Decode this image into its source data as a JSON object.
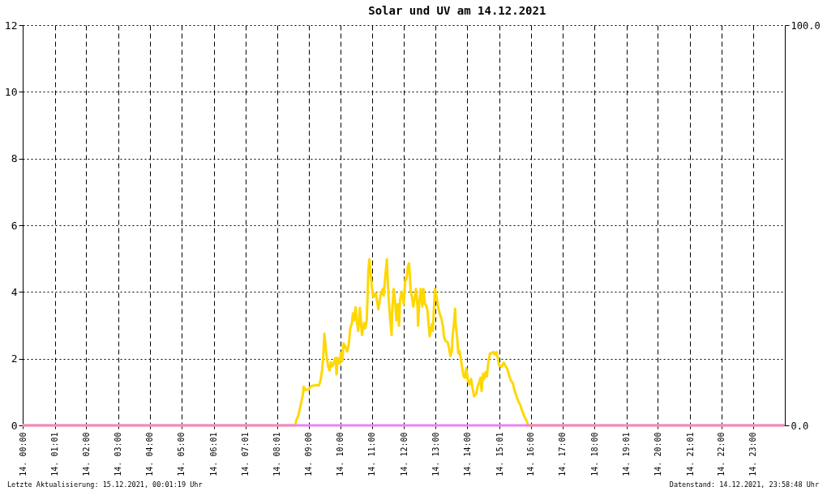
{
  "chart_data": {
    "type": "line",
    "title": "Solar und UV am 14.12.2021",
    "xlim": [
      "2021-12-14T00:00",
      "2021-12-15T00:00"
    ],
    "xticks": [
      {
        "value": "2021-12-14T00:00",
        "label": "14. 00:00"
      },
      {
        "value": "2021-12-14T01:01",
        "label": "14. 01:01"
      },
      {
        "value": "2021-12-14T02:00",
        "label": "14. 02:00"
      },
      {
        "value": "2021-12-14T03:00",
        "label": "14. 03:00"
      },
      {
        "value": "2021-12-14T04:00",
        "label": "14. 04:00"
      },
      {
        "value": "2021-12-14T05:00",
        "label": "14. 05:00"
      },
      {
        "value": "2021-12-14T06:01",
        "label": "14. 06:01"
      },
      {
        "value": "2021-12-14T07:01",
        "label": "14. 07:01"
      },
      {
        "value": "2021-12-14T08:01",
        "label": "14. 08:01"
      },
      {
        "value": "2021-12-14T09:00",
        "label": "14. 09:00"
      },
      {
        "value": "2021-12-14T10:00",
        "label": "14. 10:00"
      },
      {
        "value": "2021-12-14T11:00",
        "label": "14. 11:00"
      },
      {
        "value": "2021-12-14T12:00",
        "label": "14. 12:00"
      },
      {
        "value": "2021-12-14T13:00",
        "label": "14. 13:00"
      },
      {
        "value": "2021-12-14T14:00",
        "label": "14. 14:00"
      },
      {
        "value": "2021-12-14T15:01",
        "label": "14. 15:01"
      },
      {
        "value": "2021-12-14T16:00",
        "label": "14. 16:00"
      },
      {
        "value": "2021-12-14T17:00",
        "label": "14. 17:00"
      },
      {
        "value": "2021-12-14T18:00",
        "label": "14. 18:00"
      },
      {
        "value": "2021-12-14T19:01",
        "label": "14. 19:01"
      },
      {
        "value": "2021-12-14T20:00",
        "label": "14. 20:00"
      },
      {
        "value": "2021-12-14T21:01",
        "label": "14. 21:01"
      },
      {
        "value": "2021-12-14T22:00",
        "label": "14. 22:00"
      },
      {
        "value": "2021-12-14T23:00",
        "label": "14. 23:00"
      }
    ],
    "ylim": [
      0,
      12
    ],
    "yticks": [
      0,
      2,
      4,
      6,
      8,
      10,
      12
    ],
    "y2lim": [
      0,
      100
    ],
    "y2ticks": [
      {
        "value": 0,
        "label": "0.0"
      },
      {
        "value": 100,
        "label": "100.0"
      }
    ],
    "grid": true,
    "legend": false,
    "marker": "none",
    "line_style": "solid",
    "series": [
      {
        "color": "#ffd700",
        "x": [
          "2021-12-14T00:00",
          "2021-12-14T08:35",
          "2021-12-14T08:37",
          "2021-12-14T08:41",
          "2021-12-14T08:45",
          "2021-12-14T08:49",
          "2021-12-14T08:51",
          "2021-12-14T08:54",
          "2021-12-14T09:00",
          "2021-12-14T09:05",
          "2021-12-14T09:13",
          "2021-12-14T09:20",
          "2021-12-14T09:23",
          "2021-12-14T09:26",
          "2021-12-14T09:28",
          "2021-12-14T09:30",
          "2021-12-14T09:32",
          "2021-12-14T09:34",
          "2021-12-14T09:37",
          "2021-12-14T09:40",
          "2021-12-14T09:42",
          "2021-12-14T09:45",
          "2021-12-14T09:49",
          "2021-12-14T09:51",
          "2021-12-14T09:53",
          "2021-12-14T09:55",
          "2021-12-14T09:59",
          "2021-12-14T10:01",
          "2021-12-14T10:04",
          "2021-12-14T10:06",
          "2021-12-14T10:09",
          "2021-12-14T10:13",
          "2021-12-14T10:16",
          "2021-12-14T10:19",
          "2021-12-14T10:22",
          "2021-12-14T10:24",
          "2021-12-14T10:26",
          "2021-12-14T10:29",
          "2021-12-14T10:31",
          "2021-12-14T10:34",
          "2021-12-14T10:37",
          "2021-12-14T10:39",
          "2021-12-14T10:41",
          "2021-12-14T10:45",
          "2021-12-14T10:47",
          "2021-12-14T10:50",
          "2021-12-14T10:52",
          "2021-12-14T10:53",
          "2021-12-14T10:55",
          "2021-12-14T10:58",
          "2021-12-14T11:01",
          "2021-12-14T11:03",
          "2021-12-14T11:07",
          "2021-12-14T11:12",
          "2021-12-14T11:16",
          "2021-12-14T11:20",
          "2021-12-14T11:22",
          "2021-12-14T11:25",
          "2021-12-14T11:28",
          "2021-12-14T11:29",
          "2021-12-14T11:31",
          "2021-12-14T11:34",
          "2021-12-14T11:37",
          "2021-12-14T11:38",
          "2021-12-14T11:41",
          "2021-12-14T11:44",
          "2021-12-14T11:46",
          "2021-12-14T11:49",
          "2021-12-14T11:51",
          "2021-12-14T11:53",
          "2021-12-14T11:56",
          "2021-12-14T12:00",
          "2021-12-14T12:03",
          "2021-12-14T12:05",
          "2021-12-14T12:08",
          "2021-12-14T12:10",
          "2021-12-14T12:13",
          "2021-12-14T12:16",
          "2021-12-14T12:18",
          "2021-12-14T12:20",
          "2021-12-14T12:23",
          "2021-12-14T12:26",
          "2021-12-14T12:27",
          "2021-12-14T12:29",
          "2021-12-14T12:32",
          "2021-12-14T12:35",
          "2021-12-14T12:37",
          "2021-12-14T12:40",
          "2021-12-14T12:42",
          "2021-12-14T12:45",
          "2021-12-14T12:47",
          "2021-12-14T12:49",
          "2021-12-14T12:53",
          "2021-12-14T12:55",
          "2021-12-14T12:57",
          "2021-12-14T12:59",
          "2021-12-14T13:02",
          "2021-12-14T13:05",
          "2021-12-14T13:08",
          "2021-12-14T13:11",
          "2021-12-14T13:14",
          "2021-12-14T13:16",
          "2021-12-14T13:19",
          "2021-12-14T13:23",
          "2021-12-14T13:26",
          "2021-12-14T13:28",
          "2021-12-14T13:31",
          "2021-12-14T13:32",
          "2021-12-14T13:35",
          "2021-12-14T13:37",
          "2021-12-14T13:38",
          "2021-12-14T13:41",
          "2021-12-14T13:43",
          "2021-12-14T13:45",
          "2021-12-14T13:47",
          "2021-12-14T13:50",
          "2021-12-14T13:53",
          "2021-12-14T13:56",
          "2021-12-14T13:58",
          "2021-12-14T14:01",
          "2021-12-14T14:04",
          "2021-12-14T14:07",
          "2021-12-14T14:10",
          "2021-12-14T14:13",
          "2021-12-14T14:17",
          "2021-12-14T14:20",
          "2021-12-14T14:23",
          "2021-12-14T14:25",
          "2021-12-14T14:27",
          "2021-12-14T14:30",
          "2021-12-14T14:32",
          "2021-12-14T14:35",
          "2021-12-14T14:37",
          "2021-12-14T14:40",
          "2021-12-14T14:43",
          "2021-12-14T14:46",
          "2021-12-14T14:49",
          "2021-12-14T14:52",
          "2021-12-14T14:55",
          "2021-12-14T14:58",
          "2021-12-14T15:00",
          "2021-12-14T15:05",
          "2021-12-14T15:09",
          "2021-12-14T15:13",
          "2021-12-14T15:16",
          "2021-12-14T15:19",
          "2021-12-14T15:22",
          "2021-12-14T15:26",
          "2021-12-14T15:29",
          "2021-12-14T15:33",
          "2021-12-14T15:37",
          "2021-12-14T15:41",
          "2021-12-14T15:44",
          "2021-12-14T15:48",
          "2021-12-14T15:52",
          "2021-12-14T15:55",
          "2021-12-14T23:59"
        ],
        "values": [
          0,
          0,
          0.15,
          0.31,
          0.59,
          0.88,
          1.16,
          1.06,
          1.08,
          1.18,
          1.2,
          1.2,
          1.37,
          1.69,
          2.1,
          2.75,
          2.42,
          2.1,
          1.77,
          1.65,
          1.89,
          1.77,
          1.93,
          2.02,
          1.53,
          2.02,
          1.85,
          2.18,
          1.93,
          2.46,
          2.38,
          2.22,
          2.42,
          2.91,
          3.07,
          3.36,
          3.15,
          3.54,
          3.15,
          2.83,
          3.52,
          3.15,
          2.71,
          3.07,
          2.91,
          3.15,
          4.05,
          4.62,
          4.98,
          4.46,
          3.97,
          3.85,
          3.97,
          3.48,
          3.89,
          4.09,
          3.89,
          4.46,
          4.98,
          4.62,
          3.89,
          3.24,
          2.71,
          3.4,
          4.09,
          3.64,
          3.15,
          3.64,
          2.99,
          3.76,
          4.01,
          3.64,
          4.41,
          4.37,
          4.78,
          4.86,
          4.05,
          3.8,
          3.56,
          3.76,
          4.09,
          3.56,
          2.99,
          3.64,
          4.09,
          3.56,
          4.09,
          3.64,
          3.6,
          3.44,
          2.99,
          2.67,
          3.03,
          2.83,
          3.52,
          4.09,
          3.85,
          3.54,
          3.34,
          3.21,
          2.97,
          2.65,
          2.53,
          2.49,
          2.28,
          2.08,
          2.24,
          2.65,
          3.09,
          3.5,
          3.05,
          2.61,
          2.16,
          2.24,
          2.08,
          1.76,
          1.47,
          1.43,
          1.72,
          1.35,
          1.23,
          1.39,
          1.11,
          0.87,
          0.95,
          1.19,
          1.31,
          1.43,
          1.03,
          1.55,
          1.39,
          1.6,
          1.47,
          1.92,
          2.16,
          2.16,
          2.2,
          2.12,
          2.2,
          2.0,
          1.8,
          1.76,
          1.88,
          1.76,
          1.68,
          1.51,
          1.35,
          1.27,
          1.07,
          0.87,
          0.7,
          0.58,
          0.42,
          0.26,
          0.14,
          0,
          0
        ]
      },
      {
        "color": "#ee82ee",
        "axis": "y2",
        "x": [
          "2021-12-14T00:00",
          "2021-12-14T23:59"
        ],
        "values": [
          0,
          0
        ]
      }
    ],
    "annotations": [
      "Letzte Aktualisierung: 15.12.2021, 00:01:19 Uhr",
      "Datenstand: 14.12.2021, 23:58:48 Uhr"
    ]
  }
}
